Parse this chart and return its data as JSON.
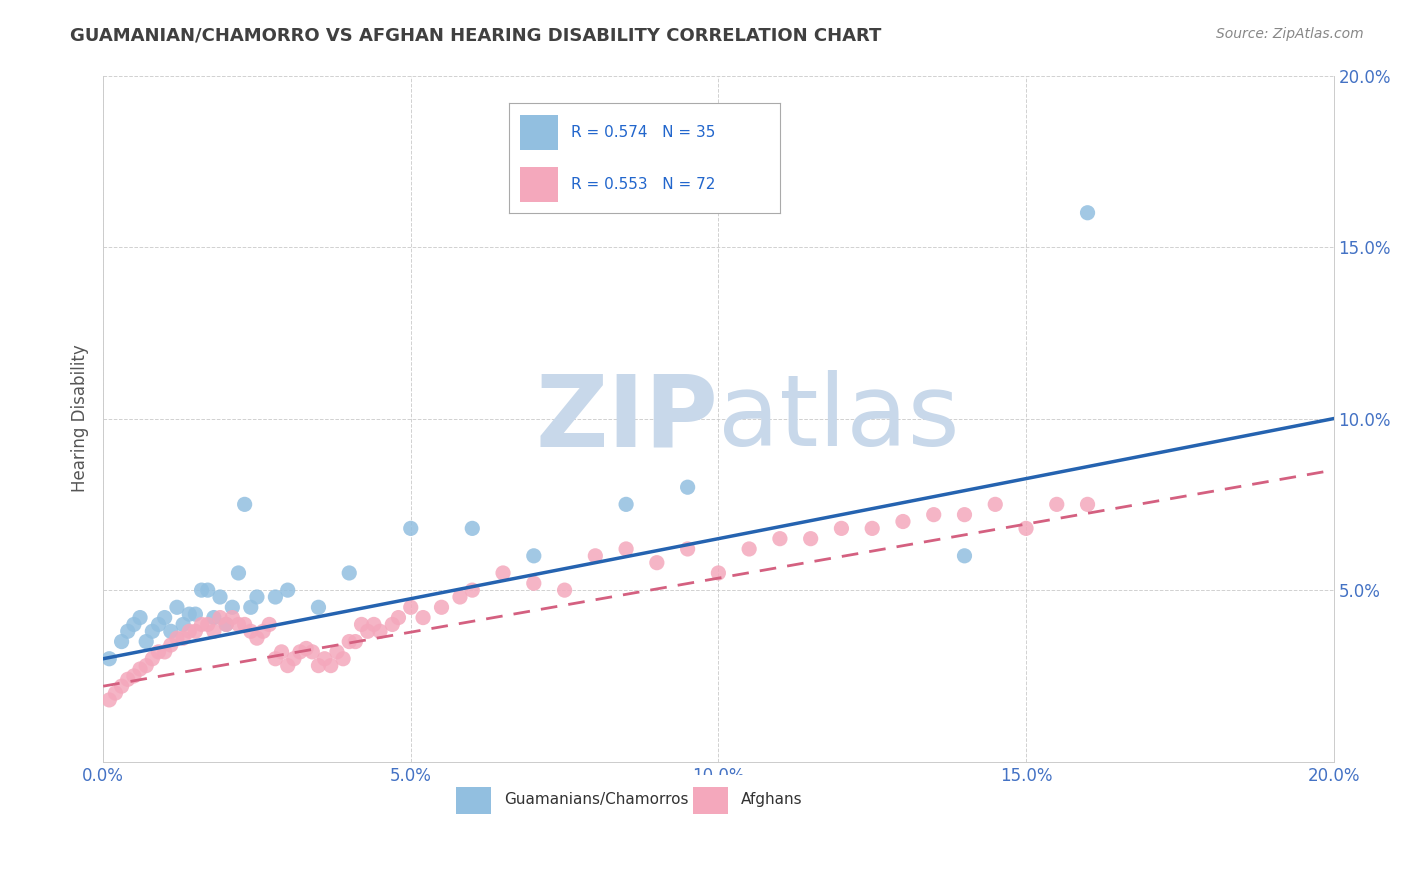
{
  "title": "GUAMANIAN/CHAMORRO VS AFGHAN HEARING DISABILITY CORRELATION CHART",
  "source": "Source: ZipAtlas.com",
  "ylabel": "Hearing Disability",
  "xlim": [
    0.0,
    0.2
  ],
  "ylim": [
    0.0,
    0.2
  ],
  "xticks": [
    0.0,
    0.05,
    0.1,
    0.15,
    0.2
  ],
  "yticks": [
    0.05,
    0.1,
    0.15,
    0.2
  ],
  "xtick_labels": [
    "0.0%",
    "5.0%",
    "10.0%",
    "15.0%",
    "20.0%"
  ],
  "ytick_labels": [
    "5.0%",
    "10.0%",
    "15.0%",
    "20.0%"
  ],
  "guamanian_color": "#92bfe0",
  "afghan_color": "#f4a8bc",
  "trendline_guamanian_color": "#2563b0",
  "trendline_afghan_color": "#d46080",
  "watermark_zip_color": "#c8d8ea",
  "watermark_atlas_color": "#c8d8ea",
  "background_color": "#ffffff",
  "grid_color": "#cccccc",
  "title_color": "#404040",
  "axis_label_color": "#555555",
  "tick_label_color": "#4472c4",
  "source_color": "#888888",
  "guamanian_x": [
    0.001,
    0.003,
    0.004,
    0.005,
    0.006,
    0.007,
    0.008,
    0.009,
    0.01,
    0.011,
    0.012,
    0.013,
    0.014,
    0.015,
    0.016,
    0.017,
    0.018,
    0.019,
    0.02,
    0.021,
    0.022,
    0.023,
    0.024,
    0.025,
    0.028,
    0.03,
    0.035,
    0.04,
    0.05,
    0.06,
    0.07,
    0.085,
    0.095,
    0.14,
    0.16
  ],
  "guamanian_y": [
    0.03,
    0.035,
    0.038,
    0.04,
    0.042,
    0.035,
    0.038,
    0.04,
    0.042,
    0.038,
    0.045,
    0.04,
    0.043,
    0.043,
    0.05,
    0.05,
    0.042,
    0.048,
    0.04,
    0.045,
    0.055,
    0.075,
    0.045,
    0.048,
    0.048,
    0.05,
    0.045,
    0.055,
    0.068,
    0.068,
    0.06,
    0.075,
    0.08,
    0.06,
    0.16
  ],
  "afghan_x": [
    0.001,
    0.002,
    0.003,
    0.004,
    0.005,
    0.006,
    0.007,
    0.008,
    0.009,
    0.01,
    0.011,
    0.012,
    0.013,
    0.014,
    0.015,
    0.016,
    0.017,
    0.018,
    0.019,
    0.02,
    0.021,
    0.022,
    0.023,
    0.024,
    0.025,
    0.026,
    0.027,
    0.028,
    0.029,
    0.03,
    0.031,
    0.032,
    0.033,
    0.034,
    0.035,
    0.036,
    0.037,
    0.038,
    0.039,
    0.04,
    0.041,
    0.042,
    0.043,
    0.044,
    0.045,
    0.047,
    0.048,
    0.05,
    0.052,
    0.055,
    0.058,
    0.06,
    0.065,
    0.07,
    0.075,
    0.08,
    0.085,
    0.09,
    0.095,
    0.1,
    0.105,
    0.11,
    0.115,
    0.12,
    0.125,
    0.13,
    0.135,
    0.14,
    0.145,
    0.15,
    0.155,
    0.16
  ],
  "afghan_y": [
    0.018,
    0.02,
    0.022,
    0.024,
    0.025,
    0.027,
    0.028,
    0.03,
    0.032,
    0.032,
    0.034,
    0.036,
    0.036,
    0.038,
    0.038,
    0.04,
    0.04,
    0.038,
    0.042,
    0.04,
    0.042,
    0.04,
    0.04,
    0.038,
    0.036,
    0.038,
    0.04,
    0.03,
    0.032,
    0.028,
    0.03,
    0.032,
    0.033,
    0.032,
    0.028,
    0.03,
    0.028,
    0.032,
    0.03,
    0.035,
    0.035,
    0.04,
    0.038,
    0.04,
    0.038,
    0.04,
    0.042,
    0.045,
    0.042,
    0.045,
    0.048,
    0.05,
    0.055,
    0.052,
    0.05,
    0.06,
    0.062,
    0.058,
    0.062,
    0.055,
    0.062,
    0.065,
    0.065,
    0.068,
    0.068,
    0.07,
    0.072,
    0.072,
    0.075,
    0.068,
    0.075,
    0.075
  ],
  "trendline_blue_x0": 0.0,
  "trendline_blue_y0": 0.03,
  "trendline_blue_x1": 0.2,
  "trendline_blue_y1": 0.1,
  "trendline_pink_x0": 0.0,
  "trendline_pink_y0": 0.022,
  "trendline_pink_x1": 0.2,
  "trendline_pink_y1": 0.085
}
